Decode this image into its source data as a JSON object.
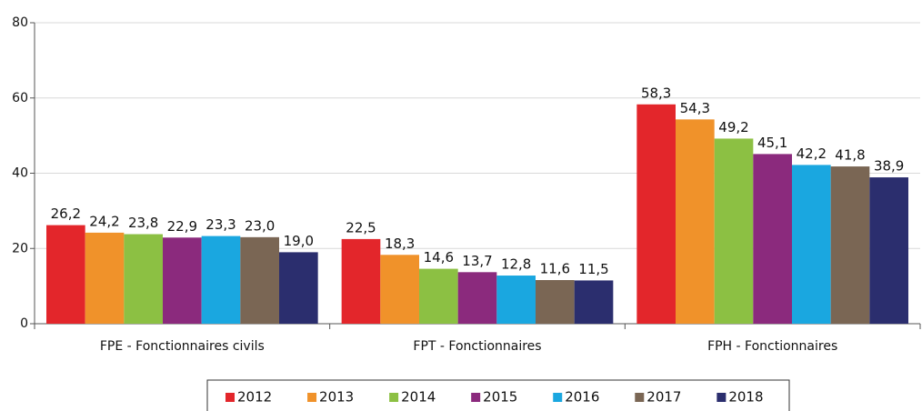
{
  "chart_data": {
    "type": "bar",
    "categories": [
      "FPE - Fonctionnaires civils",
      "FPT - Fonctionnaires",
      "FPH - Fonctionnaires"
    ],
    "series": [
      {
        "name": "2012",
        "color": "#e3262b",
        "values": [
          26.2,
          22.5,
          58.3
        ],
        "value_labels": [
          "26,2",
          "22,5",
          "58,3"
        ]
      },
      {
        "name": "2013",
        "color": "#f0922a",
        "values": [
          24.2,
          18.3,
          54.3
        ],
        "value_labels": [
          "24,2",
          "18,3",
          "54,3"
        ]
      },
      {
        "name": "2014",
        "color": "#8cc043",
        "values": [
          23.8,
          14.6,
          49.2
        ],
        "value_labels": [
          "23,8",
          "14,6",
          "49,2"
        ]
      },
      {
        "name": "2015",
        "color": "#8b2a7d",
        "values": [
          22.9,
          13.7,
          45.1
        ],
        "value_labels": [
          "22,9",
          "13,7",
          "45,1"
        ]
      },
      {
        "name": "2016",
        "color": "#1aa7e0",
        "values": [
          23.3,
          12.8,
          42.2
        ],
        "value_labels": [
          "23,3",
          "12,8",
          "42,2"
        ]
      },
      {
        "name": "2017",
        "color": "#7a6654",
        "values": [
          23.0,
          11.6,
          41.8
        ],
        "value_labels": [
          "23,0",
          "11,6",
          "41,8"
        ]
      },
      {
        "name": "2018",
        "color": "#2b2e6e",
        "values": [
          19.0,
          11.5,
          38.9
        ],
        "value_labels": [
          "19,0",
          "11,5",
          "38,9"
        ]
      }
    ],
    "ylim": [
      0,
      80
    ],
    "yticks": [
      0,
      20,
      40,
      60,
      80
    ],
    "grid": true,
    "legend": "bottom"
  }
}
